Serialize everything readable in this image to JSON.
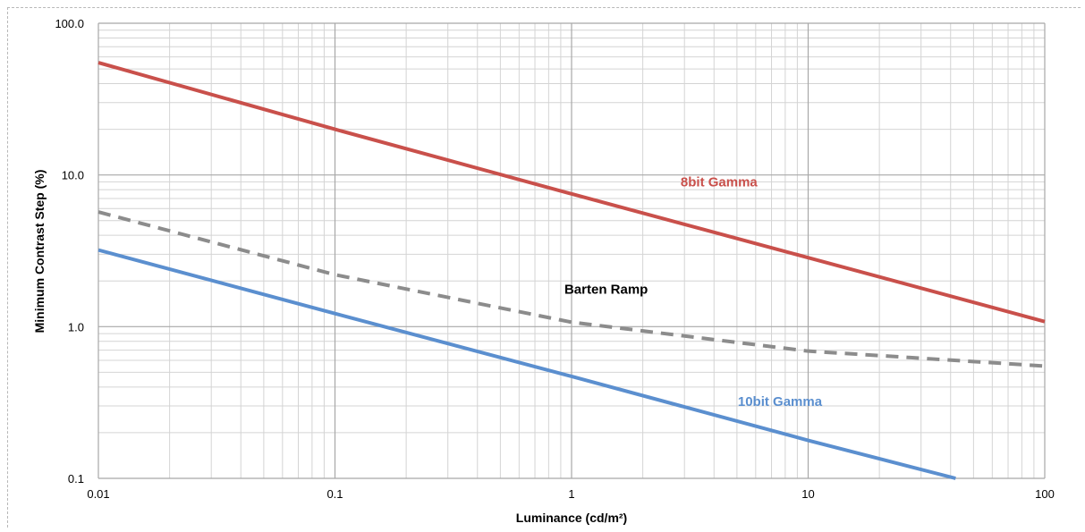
{
  "chart_data": {
    "type": "line",
    "xlabel": "Luminance (cd/m²)",
    "ylabel": "Minimum Contrast Step (%)",
    "x_scale": "log",
    "y_scale": "log",
    "xlim": [
      0.01,
      100
    ],
    "ylim": [
      0.1,
      100
    ],
    "x_ticks": [
      "0.01",
      "0.1",
      "1",
      "10",
      "100"
    ],
    "y_ticks": [
      "0.1",
      "1.0",
      "10.0",
      "100.0"
    ],
    "grid": true,
    "series": [
      {
        "name": "8bit Gamma",
        "color": "#c9504b",
        "dash": "solid",
        "x": [
          0.01,
          0.1,
          1,
          10,
          100
        ],
        "y": [
          55,
          20,
          7.5,
          2.85,
          1.08
        ]
      },
      {
        "name": "Barten Ramp",
        "color": "#8c8c8c",
        "dash": "dashed",
        "x": [
          0.01,
          0.1,
          1,
          10,
          100
        ],
        "y": [
          5.7,
          2.2,
          1.07,
          0.69,
          0.55
        ]
      },
      {
        "name": "10bit Gamma",
        "color": "#5b8fcf",
        "dash": "solid",
        "x": [
          0.01,
          0.1,
          1,
          10,
          42
        ],
        "y": [
          3.2,
          1.22,
          0.47,
          0.178,
          0.1
        ]
      }
    ],
    "annotations": [
      {
        "text": "8bit Gamma",
        "x": 4.2,
        "y": 8.4,
        "color": "#c9504b"
      },
      {
        "text": "Barten Ramp",
        "x": 1.4,
        "y": 1.65,
        "color": "#000000"
      },
      {
        "text": "10bit Gamma",
        "x": 7.6,
        "y": 0.3,
        "color": "#5b8fcf"
      }
    ]
  }
}
